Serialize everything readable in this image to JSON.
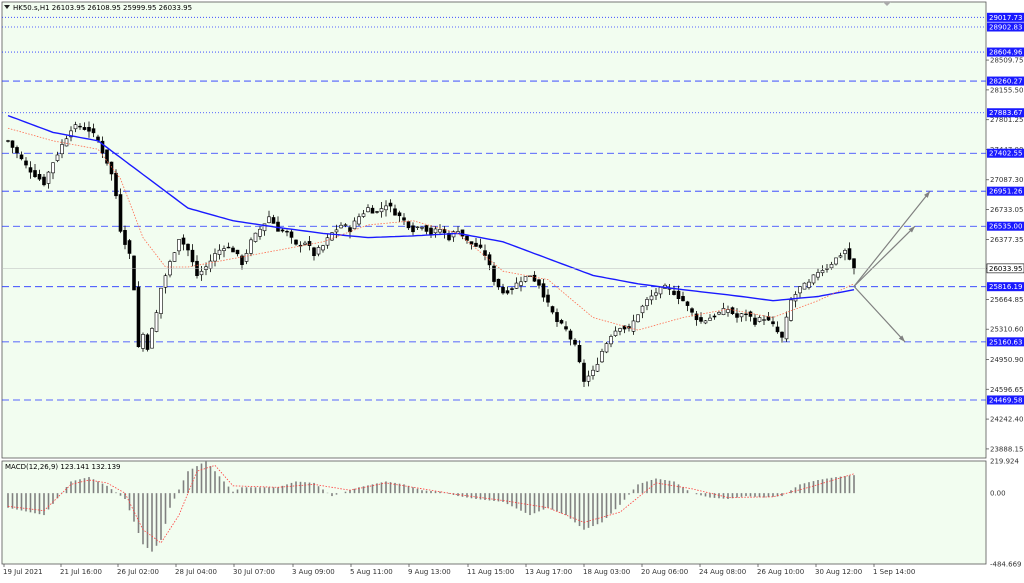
{
  "chart_data": [
    {
      "type": "candlestick",
      "instrument_header": "HK50.s,H1  26103.95 26108.95 25999.95 26033.95",
      "x_tick_labels": [
        "19 Jul 2021",
        "21 Jul 16:00",
        "26 Jul 02:00",
        "28 Jul 04:00",
        "30 Jul 07:00",
        "3 Aug 09:00",
        "5 Aug 11:00",
        "9 Aug 13:00",
        "11 Aug 15:00",
        "13 Aug 17:00",
        "18 Aug 03:00",
        "20 Aug 06:00",
        "24 Aug 08:00",
        "26 Aug 10:00",
        "30 Aug 12:00",
        "1 Sep 14:00"
      ],
      "y_tick_labels": [
        "28509.75",
        "28155.50",
        "27801.25",
        "27447.00",
        "27087.30",
        "26733.05",
        "26377.35",
        "26033.95",
        "25664.85",
        "25310.60",
        "24950.90",
        "24596.65",
        "24242.40",
        "23888.15"
      ],
      "ylim": [
        23780,
        29200
      ],
      "current_price": "26033.95",
      "levels": [
        {
          "label": "29017.73",
          "value": 29017.73,
          "style": "dotted"
        },
        {
          "label": "28902.83",
          "value": 28902.83,
          "style": "dotted"
        },
        {
          "label": "28604.96",
          "value": 28604.96,
          "style": "dotted"
        },
        {
          "label": "28260.27",
          "value": 28260.27,
          "style": "dashed"
        },
        {
          "label": "27883.67",
          "value": 27883.67,
          "style": "dotted"
        },
        {
          "label": "27402.55",
          "value": 27402.55,
          "style": "dashed"
        },
        {
          "label": "26951.26",
          "value": 26951.26,
          "style": "dashed"
        },
        {
          "label": "26535.00",
          "value": 26535.0,
          "style": "dashed"
        },
        {
          "label": "25816.19",
          "value": 25816.19,
          "style": "dashed"
        },
        {
          "label": "25160.63",
          "value": 25160.63,
          "style": "dashed"
        },
        {
          "label": "24469.58",
          "value": 24469.58,
          "style": "dashed"
        }
      ],
      "close_path": [
        [
          0,
          27550
        ],
        [
          2,
          27400
        ],
        [
          4,
          27250
        ],
        [
          6,
          27150
        ],
        [
          8,
          27050
        ],
        [
          10,
          27300
        ],
        [
          12,
          27500
        ],
        [
          14,
          27700
        ],
        [
          16,
          27720
        ],
        [
          18,
          27680
        ],
        [
          20,
          27550
        ],
        [
          22,
          27300
        ],
        [
          23,
          27150
        ],
        [
          24,
          26900
        ],
        [
          25,
          26500
        ],
        [
          26,
          26350
        ],
        [
          27,
          26200
        ],
        [
          28,
          25800
        ],
        [
          29,
          25100
        ],
        [
          30,
          25250
        ],
        [
          31,
          25100
        ],
        [
          32,
          25300
        ],
        [
          33,
          25500
        ],
        [
          34,
          25800
        ],
        [
          36,
          26100
        ],
        [
          38,
          26400
        ],
        [
          40,
          26250
        ],
        [
          42,
          25950
        ],
        [
          44,
          26050
        ],
        [
          46,
          26200
        ],
        [
          48,
          26300
        ],
        [
          50,
          26250
        ],
        [
          52,
          26100
        ],
        [
          54,
          26350
        ],
        [
          56,
          26500
        ],
        [
          58,
          26650
        ],
        [
          60,
          26500
        ],
        [
          62,
          26450
        ],
        [
          64,
          26300
        ],
        [
          66,
          26350
        ],
        [
          68,
          26200
        ],
        [
          70,
          26300
        ],
        [
          72,
          26450
        ],
        [
          74,
          26550
        ],
        [
          76,
          26500
        ],
        [
          78,
          26650
        ],
        [
          80,
          26750
        ],
        [
          82,
          26700
        ],
        [
          84,
          26800
        ],
        [
          86,
          26700
        ],
        [
          88,
          26600
        ],
        [
          90,
          26500
        ],
        [
          92,
          26550
        ],
        [
          94,
          26450
        ],
        [
          96,
          26500
        ],
        [
          98,
          26400
        ],
        [
          100,
          26500
        ],
        [
          102,
          26350
        ],
        [
          104,
          26300
        ],
        [
          106,
          26200
        ],
        [
          108,
          25900
        ],
        [
          110,
          25750
        ],
        [
          112,
          25800
        ],
        [
          114,
          25900
        ],
        [
          116,
          25950
        ],
        [
          118,
          25850
        ],
        [
          120,
          25600
        ],
        [
          122,
          25400
        ],
        [
          124,
          25300
        ],
        [
          126,
          25100
        ],
        [
          128,
          24700
        ],
        [
          130,
          24800
        ],
        [
          132,
          25050
        ],
        [
          134,
          25250
        ],
        [
          136,
          25350
        ],
        [
          138,
          25300
        ],
        [
          140,
          25500
        ],
        [
          142,
          25650
        ],
        [
          144,
          25750
        ],
        [
          146,
          25800
        ],
        [
          148,
          25750
        ],
        [
          150,
          25650
        ],
        [
          152,
          25500
        ],
        [
          154,
          25400
        ],
        [
          156,
          25450
        ],
        [
          158,
          25500
        ],
        [
          160,
          25550
        ],
        [
          162,
          25450
        ],
        [
          164,
          25500
        ],
        [
          166,
          25400
        ],
        [
          168,
          25450
        ],
        [
          170,
          25350
        ],
        [
          172,
          25200
        ],
        [
          174,
          25650
        ],
        [
          176,
          25800
        ],
        [
          178,
          25850
        ],
        [
          180,
          26000
        ],
        [
          182,
          26050
        ],
        [
          184,
          26150
        ],
        [
          186,
          26250
        ],
        [
          188,
          26033.95
        ]
      ],
      "ma_slow": [
        [
          0,
          27850
        ],
        [
          10,
          27650
        ],
        [
          20,
          27550
        ],
        [
          30,
          27150
        ],
        [
          40,
          26750
        ],
        [
          50,
          26600
        ],
        [
          60,
          26520
        ],
        [
          70,
          26450
        ],
        [
          80,
          26400
        ],
        [
          90,
          26420
        ],
        [
          100,
          26450
        ],
        [
          110,
          26350
        ],
        [
          120,
          26150
        ],
        [
          130,
          25950
        ],
        [
          140,
          25850
        ],
        [
          150,
          25780
        ],
        [
          160,
          25720
        ],
        [
          170,
          25650
        ],
        [
          180,
          25700
        ],
        [
          188,
          25780
        ]
      ],
      "ma_fast": [
        [
          0,
          27700
        ],
        [
          10,
          27550
        ],
        [
          20,
          27450
        ],
        [
          25,
          27100
        ],
        [
          30,
          26400
        ],
        [
          35,
          26050
        ],
        [
          40,
          26050
        ],
        [
          50,
          26150
        ],
        [
          60,
          26250
        ],
        [
          70,
          26350
        ],
        [
          80,
          26550
        ],
        [
          90,
          26600
        ],
        [
          100,
          26450
        ],
        [
          110,
          26000
        ],
        [
          120,
          25900
        ],
        [
          130,
          25450
        ],
        [
          140,
          25300
        ],
        [
          150,
          25450
        ],
        [
          160,
          25550
        ],
        [
          170,
          25450
        ],
        [
          180,
          25650
        ],
        [
          188,
          25850
        ]
      ],
      "projection_from": [
        188,
        25820
      ],
      "projection_targets": [
        26951.26,
        26535.0,
        25160.63
      ],
      "indicator": {
        "label": "MACD(12,26,9) 123.141 132.139",
        "y_tick_labels": [
          "219.924",
          "0.00",
          "-484.669"
        ],
        "ylim": [
          -484.669,
          219.924
        ],
        "histogram": [
          [
            0,
            -100
          ],
          [
            8,
            -150
          ],
          [
            14,
            80
          ],
          [
            18,
            110
          ],
          [
            22,
            50
          ],
          [
            26,
            -40
          ],
          [
            30,
            -350
          ],
          [
            32,
            -400
          ],
          [
            34,
            -320
          ],
          [
            36,
            -100
          ],
          [
            40,
            150
          ],
          [
            44,
            220
          ],
          [
            46,
            150
          ],
          [
            50,
            10
          ],
          [
            52,
            40
          ],
          [
            60,
            40
          ],
          [
            64,
            80
          ],
          [
            68,
            70
          ],
          [
            72,
            -20
          ],
          [
            78,
            40
          ],
          [
            84,
            80
          ],
          [
            88,
            60
          ],
          [
            92,
            20
          ],
          [
            96,
            10
          ],
          [
            100,
            -20
          ],
          [
            104,
            -40
          ],
          [
            110,
            -60
          ],
          [
            116,
            -150
          ],
          [
            120,
            -100
          ],
          [
            124,
            -150
          ],
          [
            128,
            -250
          ],
          [
            132,
            -200
          ],
          [
            136,
            -80
          ],
          [
            140,
            60
          ],
          [
            144,
            100
          ],
          [
            148,
            80
          ],
          [
            152,
            0
          ],
          [
            156,
            -30
          ],
          [
            160,
            -40
          ],
          [
            164,
            -20
          ],
          [
            168,
            -30
          ],
          [
            172,
            -20
          ],
          [
            176,
            60
          ],
          [
            180,
            90
          ],
          [
            184,
            110
          ],
          [
            188,
            123.141
          ]
        ],
        "signal": [
          [
            0,
            -90
          ],
          [
            8,
            -120
          ],
          [
            14,
            60
          ],
          [
            18,
            90
          ],
          [
            22,
            70
          ],
          [
            26,
            0
          ],
          [
            30,
            -250
          ],
          [
            34,
            -340
          ],
          [
            38,
            -150
          ],
          [
            42,
            150
          ],
          [
            46,
            190
          ],
          [
            50,
            50
          ],
          [
            60,
            40
          ],
          [
            68,
            60
          ],
          [
            76,
            20
          ],
          [
            84,
            70
          ],
          [
            92,
            30
          ],
          [
            100,
            -10
          ],
          [
            110,
            -50
          ],
          [
            120,
            -100
          ],
          [
            128,
            -200
          ],
          [
            136,
            -130
          ],
          [
            144,
            70
          ],
          [
            152,
            30
          ],
          [
            160,
            -30
          ],
          [
            170,
            -25
          ],
          [
            178,
            40
          ],
          [
            188,
            132.139
          ]
        ]
      },
      "colors": {
        "background": "#f2fdf0",
        "candle": "#000000",
        "ma_slow": "#1a1aff",
        "ma_fast": "#ff6a4d",
        "level_line": "#2233ff",
        "level_label_bg": "#1a1aff",
        "projection": "#808080",
        "macd_hist": "#808080",
        "macd_signal": "#ff3b3b"
      }
    }
  ]
}
